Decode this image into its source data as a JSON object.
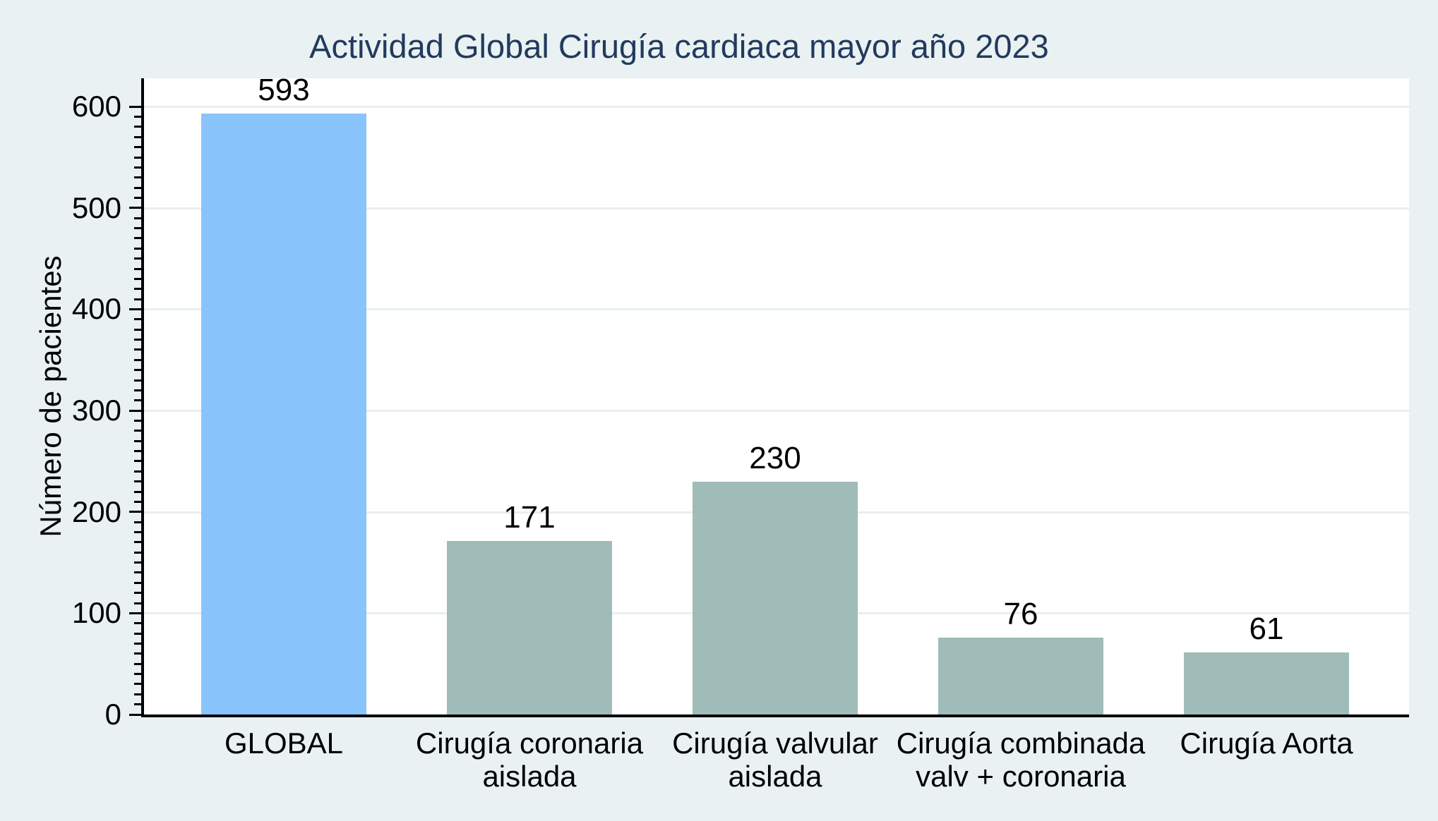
{
  "figure": {
    "title": "Actividad Global Cirugía cardiaca mayor año 2023",
    "ylabel": "Número de pacientes"
  },
  "colors": {
    "background": "#E9F1F2",
    "plot_background": "#FFFFFF",
    "gridline": "#E7EFF1",
    "axis": "#000000",
    "title_text": "#223A5E",
    "bar_highlight": "#8AC4FC",
    "bar_default": "#A0BCB8",
    "label_text": "#000000"
  },
  "chart_data": {
    "type": "bar",
    "title": "Actividad Global Cirugía cardiaca mayor año 2023",
    "xlabel": "",
    "ylabel": "Número de pacientes",
    "categories": [
      "GLOBAL",
      "Cirugía coronaria aislada",
      "Cirugía valvular aislada",
      "Cirugía combinada valv + coronaria",
      "Cirugía Aorta"
    ],
    "category_label_lines": [
      [
        "GLOBAL"
      ],
      [
        "Cirugía coronaria",
        "aislada"
      ],
      [
        "Cirugía valvular",
        "aislada"
      ],
      [
        "Cirugía combinada",
        "valv + coronaria"
      ],
      [
        "Cirugía Aorta"
      ]
    ],
    "values": [
      593,
      171,
      230,
      76,
      61
    ],
    "value_labels": [
      "593",
      "171",
      "230",
      "76",
      "61"
    ],
    "bar_colors": [
      "#8AC4FC",
      "#A0BCB8",
      "#A0BCB8",
      "#A0BCB8",
      "#A0BCB8"
    ],
    "ylim": [
      0,
      628
    ],
    "yticks": [
      0,
      100,
      200,
      300,
      400,
      500,
      600
    ],
    "ytick_labels": [
      "0",
      "100",
      "200",
      "300",
      "400",
      "500",
      "600"
    ],
    "minor_tick_step": 10,
    "grid": true,
    "legend": false,
    "value_labels_shown": true
  }
}
